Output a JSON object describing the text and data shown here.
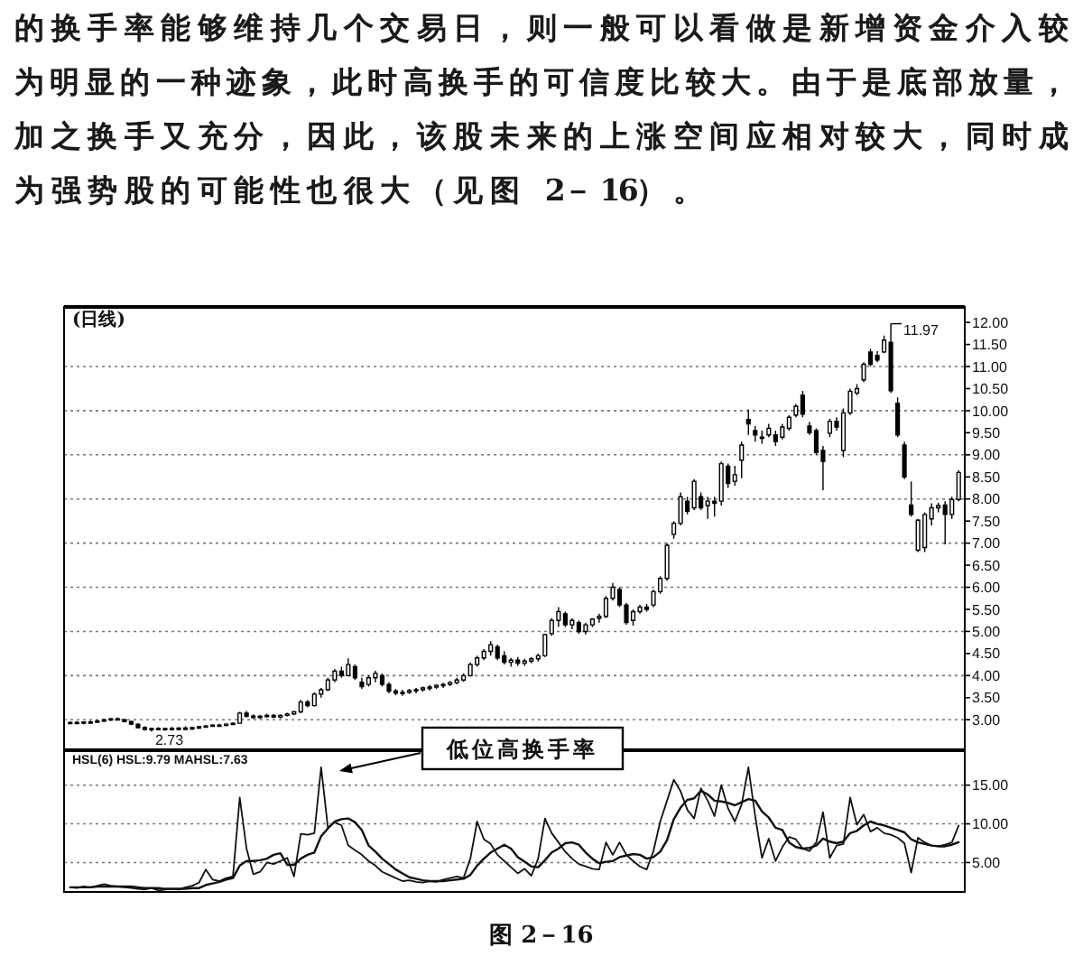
{
  "chart_data": [
    {
      "type": "candlestick",
      "title": "(日线)",
      "categories": [
        null,
        null,
        null,
        null,
        null,
        null,
        null,
        null,
        null,
        null,
        null,
        null,
        null,
        null,
        null,
        null,
        null,
        null,
        null,
        null,
        null,
        null,
        null,
        null,
        null,
        null,
        null,
        null,
        null,
        null,
        null,
        null,
        null,
        null,
        null,
        null,
        null,
        null,
        null,
        null,
        null,
        null,
        null,
        null,
        null,
        null,
        null,
        null,
        null,
        null,
        null,
        null,
        null,
        null,
        null,
        null,
        null,
        null,
        null,
        null,
        null,
        null,
        null,
        null,
        null,
        null,
        null,
        null,
        null,
        null,
        null,
        null,
        null,
        null,
        null,
        null,
        null,
        null,
        null,
        null,
        null,
        null,
        null,
        null,
        null,
        null,
        null,
        null,
        null,
        null,
        null,
        null,
        null,
        null,
        null,
        null,
        null,
        null,
        null,
        null,
        null,
        null,
        null,
        null,
        null,
        null,
        null,
        null,
        null,
        null,
        null,
        null,
        null,
        null,
        null,
        null,
        null,
        null,
        null,
        null,
        null,
        null,
        null,
        null,
        null,
        null,
        null,
        null,
        null,
        null,
        null,
        null
      ],
      "ohlc": [
        [
          2.92,
          2.96,
          2.9,
          2.94
        ],
        [
          2.94,
          2.97,
          2.91,
          2.93
        ],
        [
          2.93,
          2.96,
          2.9,
          2.95
        ],
        [
          2.95,
          2.98,
          2.92,
          2.94
        ],
        [
          2.94,
          2.99,
          2.93,
          2.97
        ],
        [
          2.97,
          3.02,
          2.95,
          3.0
        ],
        [
          3.0,
          3.04,
          2.97,
          3.02
        ],
        [
          3.02,
          3.05,
          2.98,
          3.0
        ],
        [
          3.0,
          3.02,
          2.94,
          2.96
        ],
        [
          2.96,
          2.98,
          2.88,
          2.9
        ],
        [
          2.9,
          2.92,
          2.8,
          2.82
        ],
        [
          2.82,
          2.85,
          2.76,
          2.78
        ],
        [
          2.78,
          2.82,
          2.73,
          2.8
        ],
        [
          2.8,
          2.83,
          2.76,
          2.78
        ],
        [
          2.78,
          2.82,
          2.75,
          2.8
        ],
        [
          2.8,
          2.84,
          2.77,
          2.79
        ],
        [
          2.79,
          2.83,
          2.76,
          2.81
        ],
        [
          2.81,
          2.85,
          2.78,
          2.8
        ],
        [
          2.8,
          2.84,
          2.77,
          2.82
        ],
        [
          2.82,
          2.86,
          2.79,
          2.84
        ],
        [
          2.84,
          2.88,
          2.82,
          2.86
        ],
        [
          2.86,
          2.9,
          2.84,
          2.88
        ],
        [
          2.88,
          2.91,
          2.85,
          2.87
        ],
        [
          2.87,
          2.92,
          2.85,
          2.9
        ],
        [
          2.9,
          2.94,
          2.88,
          2.92
        ],
        [
          2.92,
          3.18,
          2.91,
          3.15
        ],
        [
          3.15,
          3.2,
          3.05,
          3.08
        ],
        [
          3.08,
          3.12,
          3.02,
          3.05
        ],
        [
          3.05,
          3.1,
          3.02,
          3.08
        ],
        [
          3.08,
          3.14,
          3.05,
          3.1
        ],
        [
          3.1,
          3.13,
          3.04,
          3.06
        ],
        [
          3.06,
          3.12,
          3.03,
          3.1
        ],
        [
          3.1,
          3.16,
          3.07,
          3.13
        ],
        [
          3.13,
          3.2,
          3.1,
          3.18
        ],
        [
          3.18,
          3.45,
          3.15,
          3.4
        ],
        [
          3.4,
          3.45,
          3.28,
          3.32
        ],
        [
          3.32,
          3.62,
          3.3,
          3.58
        ],
        [
          3.58,
          3.72,
          3.5,
          3.68
        ],
        [
          3.68,
          3.95,
          3.65,
          3.9
        ],
        [
          3.9,
          4.15,
          3.85,
          4.1
        ],
        [
          4.1,
          4.2,
          3.95,
          4.0
        ],
        [
          4.0,
          4.39,
          3.98,
          4.25
        ],
        [
          4.2,
          4.25,
          3.9,
          3.95
        ],
        [
          3.85,
          3.95,
          3.7,
          3.75
        ],
        [
          3.8,
          4.0,
          3.75,
          3.95
        ],
        [
          3.95,
          4.11,
          3.85,
          4.05
        ],
        [
          4.0,
          4.05,
          3.75,
          3.8
        ],
        [
          3.8,
          3.85,
          3.6,
          3.65
        ],
        [
          3.65,
          3.7,
          3.55,
          3.6
        ],
        [
          3.6,
          3.68,
          3.54,
          3.62
        ],
        [
          3.62,
          3.7,
          3.58,
          3.66
        ],
        [
          3.66,
          3.72,
          3.6,
          3.68
        ],
        [
          3.68,
          3.75,
          3.64,
          3.72
        ],
        [
          3.72,
          3.78,
          3.66,
          3.74
        ],
        [
          3.74,
          3.8,
          3.7,
          3.78
        ],
        [
          3.78,
          3.84,
          3.72,
          3.8
        ],
        [
          3.8,
          3.88,
          3.76,
          3.84
        ],
        [
          3.84,
          3.95,
          3.8,
          3.9
        ],
        [
          3.9,
          4.05,
          3.86,
          4.0
        ],
        [
          4.0,
          4.3,
          3.98,
          4.25
        ],
        [
          4.25,
          4.45,
          4.2,
          4.4
        ],
        [
          4.4,
          4.6,
          4.35,
          4.55
        ],
        [
          4.55,
          4.78,
          4.45,
          4.7
        ],
        [
          4.65,
          4.7,
          4.35,
          4.4
        ],
        [
          4.45,
          4.55,
          4.25,
          4.3
        ],
        [
          4.3,
          4.4,
          4.2,
          4.35
        ],
        [
          4.35,
          4.42,
          4.22,
          4.28
        ],
        [
          4.28,
          4.38,
          4.22,
          4.33
        ],
        [
          4.33,
          4.42,
          4.28,
          4.38
        ],
        [
          4.38,
          4.5,
          4.32,
          4.45
        ],
        [
          4.45,
          4.95,
          4.42,
          4.93
        ],
        [
          4.95,
          5.3,
          4.9,
          5.25
        ],
        [
          5.25,
          5.55,
          5.1,
          5.45
        ],
        [
          5.4,
          5.45,
          5.1,
          5.15
        ],
        [
          5.15,
          5.3,
          5.05,
          5.25
        ],
        [
          5.2,
          5.25,
          4.95,
          5.0
        ],
        [
          5.0,
          5.2,
          4.93,
          5.15
        ],
        [
          5.15,
          5.3,
          5.1,
          5.28
        ],
        [
          5.3,
          5.4,
          5.2,
          5.34
        ],
        [
          5.34,
          5.8,
          5.3,
          5.75
        ],
        [
          5.75,
          6.1,
          5.7,
          6.0
        ],
        [
          5.95,
          6.0,
          5.55,
          5.6
        ],
        [
          5.6,
          5.65,
          5.15,
          5.2
        ],
        [
          5.25,
          5.5,
          5.13,
          5.45
        ],
        [
          5.45,
          5.6,
          5.4,
          5.55
        ],
        [
          5.55,
          5.62,
          5.45,
          5.5
        ],
        [
          5.6,
          5.95,
          5.55,
          5.9
        ],
        [
          5.9,
          6.25,
          5.85,
          6.2
        ],
        [
          6.2,
          7.0,
          6.15,
          6.95
        ],
        [
          7.2,
          7.5,
          7.1,
          7.45
        ],
        [
          7.45,
          8.15,
          7.4,
          8.05
        ],
        [
          7.95,
          8.05,
          7.65,
          7.72
        ],
        [
          7.8,
          8.45,
          7.75,
          8.4
        ],
        [
          8.05,
          8.15,
          7.75,
          7.8
        ],
        [
          7.85,
          8.05,
          7.55,
          7.95
        ],
        [
          7.95,
          8.05,
          7.6,
          7.9
        ],
        [
          7.95,
          8.85,
          7.85,
          8.8
        ],
        [
          8.74,
          8.8,
          8.25,
          8.35
        ],
        [
          8.4,
          8.75,
          8.3,
          8.55
        ],
        [
          8.88,
          9.3,
          8.47,
          9.22
        ],
        [
          9.8,
          10.03,
          9.45,
          9.7
        ],
        [
          9.55,
          9.65,
          9.3,
          9.45
        ],
        [
          9.4,
          9.55,
          9.25,
          9.38
        ],
        [
          9.45,
          9.7,
          9.4,
          9.6
        ],
        [
          9.45,
          9.55,
          9.2,
          9.3
        ],
        [
          9.4,
          9.7,
          9.35,
          9.63
        ],
        [
          9.6,
          9.9,
          9.55,
          9.85
        ],
        [
          9.9,
          10.15,
          9.85,
          10.1
        ],
        [
          10.35,
          10.45,
          9.85,
          9.92
        ],
        [
          9.65,
          9.75,
          9.45,
          9.5
        ],
        [
          9.55,
          9.6,
          9.0,
          9.05
        ],
        [
          9.1,
          9.2,
          8.2,
          8.85
        ],
        [
          9.49,
          9.82,
          9.4,
          9.76
        ],
        [
          9.76,
          9.85,
          9.55,
          9.63
        ],
        [
          9.1,
          10.05,
          8.95,
          9.95
        ],
        [
          9.95,
          10.5,
          9.9,
          10.44
        ],
        [
          10.4,
          10.6,
          10.35,
          10.5
        ],
        [
          10.7,
          11.1,
          10.65,
          11.05
        ],
        [
          11.33,
          11.4,
          11.0,
          11.05
        ],
        [
          11.25,
          11.35,
          11.1,
          11.15
        ],
        [
          11.33,
          11.7,
          11.3,
          11.6
        ],
        [
          11.55,
          11.97,
          10.4,
          10.45
        ],
        [
          10.17,
          10.3,
          9.4,
          9.45
        ],
        [
          9.22,
          9.3,
          8.45,
          8.5
        ],
        [
          7.86,
          8.4,
          7.6,
          7.65
        ],
        [
          6.84,
          7.55,
          6.8,
          7.52
        ],
        [
          6.9,
          7.7,
          6.8,
          7.65
        ],
        [
          7.55,
          7.9,
          7.4,
          7.8
        ],
        [
          7.8,
          7.92,
          7.7,
          7.85
        ],
        [
          7.86,
          7.95,
          6.97,
          7.65
        ],
        [
          7.65,
          8.05,
          7.55,
          7.99
        ],
        [
          7.99,
          8.65,
          7.95,
          8.6
        ]
      ],
      "color": "#000000",
      "ylim": [
        2.33,
        12.35
      ],
      "yticks": [
        {
          "value": 3,
          "label": "3.00"
        },
        {
          "value": 3.5,
          "label": "3.50"
        },
        {
          "value": 4,
          "label": "4.00"
        },
        {
          "value": 4.5,
          "label": "4.50"
        },
        {
          "value": 5,
          "label": "5.00"
        },
        {
          "value": 5.5,
          "label": "5.50"
        },
        {
          "value": 6,
          "label": "6.00"
        },
        {
          "value": 6.5,
          "label": "6.50"
        },
        {
          "value": 7,
          "label": "7.00"
        },
        {
          "value": 7.5,
          "label": "7.50"
        },
        {
          "value": 8,
          "label": "8.00"
        },
        {
          "value": 8.5,
          "label": "8.50"
        },
        {
          "value": 9,
          "label": "9.00"
        },
        {
          "value": 9.5,
          "label": "9.50"
        },
        {
          "value": 10,
          "label": "10.00"
        },
        {
          "value": 10.5,
          "label": "10.50"
        },
        {
          "value": 11,
          "label": "11.00"
        },
        {
          "value": 11.5,
          "label": "11.50"
        },
        {
          "value": 12,
          "label": "12.00"
        }
      ],
      "grid": "y",
      "annotations": [
        "的换手率能够维持几个交易日，则一般可以看做是新增资金介入较为明显的一种迹象，此时高换手的可信度比较大。由于是底部放量，加之换手又充分，因此，该股未来的上涨空间应相对较大，同时成为强势股的可能性也很大（见图 2－16）。",
        "11.97",
        "2.73",
        "图 2－16"
      ]
    },
    {
      "type": "line",
      "title": "HSL(6) HSL:9.79 MAHSL:7.63",
      "categories": [
        null,
        null,
        null,
        null,
        null,
        null,
        null,
        null,
        null,
        null,
        null,
        null,
        null,
        null,
        null,
        null,
        null,
        null,
        null,
        null,
        null,
        null,
        null,
        null,
        null,
        null,
        null,
        null,
        null,
        null,
        null,
        null,
        null,
        null,
        null,
        null,
        null,
        null,
        null,
        null,
        null,
        null,
        null,
        null,
        null,
        null,
        null,
        null,
        null,
        null,
        null,
        null,
        null,
        null,
        null,
        null,
        null,
        null,
        null,
        null,
        null,
        null,
        null,
        null,
        null,
        null,
        null,
        null,
        null,
        null,
        null,
        null,
        null,
        null,
        null,
        null,
        null,
        null,
        null,
        null,
        null,
        null,
        null,
        null,
        null,
        null,
        null,
        null,
        null,
        null,
        null,
        null,
        null,
        null,
        null,
        null,
        null,
        null,
        null,
        null,
        null,
        null,
        null,
        null,
        null,
        null,
        null,
        null,
        null,
        null,
        null,
        null,
        null,
        null,
        null,
        null,
        null,
        null,
        null,
        null,
        null,
        null,
        null,
        null,
        null,
        null,
        null,
        null,
        null,
        null,
        null,
        null
      ],
      "series": [
        {
          "color": "#111111",
          "values": [
            1.8,
            1.7,
            1.9,
            1.8,
            2.0,
            2.2,
            2.0,
            1.9,
            1.8,
            1.7,
            1.6,
            1.5,
            1.7,
            1.4,
            1.5,
            1.6,
            1.5,
            1.8,
            2.0,
            2.4,
            4.1,
            2.8,
            2.6,
            3.0,
            3.2,
            13.4,
            6.8,
            3.5,
            3.8,
            5.0,
            4.8,
            5.2,
            5.6,
            3.2,
            8.7,
            8.6,
            8.8,
            17.3,
            9.5,
            10.2,
            9.8,
            7.2,
            6.6,
            6.0,
            5.2,
            4.6,
            3.8,
            3.4,
            3.0,
            2.6,
            2.7,
            2.5,
            2.4,
            2.6,
            2.5,
            2.8,
            3.0,
            3.2,
            3.0,
            5.5,
            10.3,
            8.0,
            7.4,
            6.0,
            5.2,
            4.4,
            3.6,
            4.2,
            3.3,
            5.5,
            10.7,
            8.8,
            7.6,
            6.4,
            5.5,
            4.8,
            4.5,
            4.2,
            4.1,
            7.6,
            6.0,
            7.6,
            6.0,
            5.2,
            4.5,
            4.1,
            6.5,
            10.3,
            13.0,
            15.7,
            14.2,
            11.8,
            10.7,
            14.6,
            13.0,
            11.0,
            15.0,
            12.0,
            10.3,
            12.5,
            17.3,
            11.0,
            5.6,
            8.1,
            5.2,
            7.0,
            8.3,
            8.0,
            6.8,
            6.5,
            7.6,
            11.5,
            5.6,
            7.2,
            7.4,
            13.4,
            9.9,
            11.2,
            9.0,
            9.5,
            8.8,
            8.6,
            8.2,
            7.5,
            3.7,
            8.2,
            7.6,
            7.2,
            7.1,
            7.3,
            7.6,
            9.79
          ]
        },
        {
          "color": "#111111",
          "values": [
            1.8,
            1.8,
            1.8,
            1.8,
            1.9,
            1.9,
            1.9,
            1.9,
            1.9,
            1.9,
            1.8,
            1.7,
            1.7,
            1.7,
            1.6,
            1.6,
            1.6,
            1.6,
            1.7,
            1.7,
            2.1,
            2.3,
            2.5,
            2.8,
            3.0,
            4.6,
            5.2,
            5.2,
            5.3,
            5.5,
            6.0,
            6.2,
            4.7,
            4.7,
            5.5,
            6.0,
            6.3,
            8.4,
            9.4,
            10.3,
            10.6,
            10.7,
            10.2,
            9.2,
            7.2,
            6.4,
            5.5,
            4.8,
            4.1,
            3.6,
            3.1,
            2.9,
            2.7,
            2.6,
            2.6,
            2.6,
            2.7,
            2.8,
            2.9,
            3.4,
            4.6,
            5.5,
            6.3,
            6.8,
            7.3,
            6.8,
            5.7,
            5.1,
            4.5,
            4.4,
            5.3,
            6.3,
            6.8,
            7.5,
            7.6,
            7.3,
            6.3,
            5.5,
            4.9,
            5.1,
            5.2,
            5.7,
            5.9,
            6.1,
            6.0,
            5.5,
            5.7,
            6.4,
            7.9,
            10.6,
            12.1,
            13.1,
            13.3,
            14.3,
            13.8,
            13.0,
            12.9,
            12.7,
            12.4,
            12.8,
            13.2,
            13.0,
            11.6,
            10.8,
            9.5,
            9.2,
            7.6,
            7.0,
            6.8,
            6.9,
            7.2,
            8.1,
            7.7,
            7.5,
            7.7,
            8.8,
            9.1,
            9.8,
            10.3,
            10.0,
            9.8,
            9.5,
            9.2,
            8.9,
            8.0,
            7.6,
            7.4,
            7.2,
            7.1,
            7.1,
            7.3,
            7.63
          ]
        }
      ],
      "ylim": [
        1.2,
        19.4
      ],
      "yticks": [
        {
          "value": 5,
          "label": "5.00"
        },
        {
          "value": 10,
          "label": "10.00"
        },
        {
          "value": 15,
          "label": "15.00"
        }
      ],
      "grid": "y",
      "annotations": [
        "低位高换手率"
      ]
    }
  ]
}
